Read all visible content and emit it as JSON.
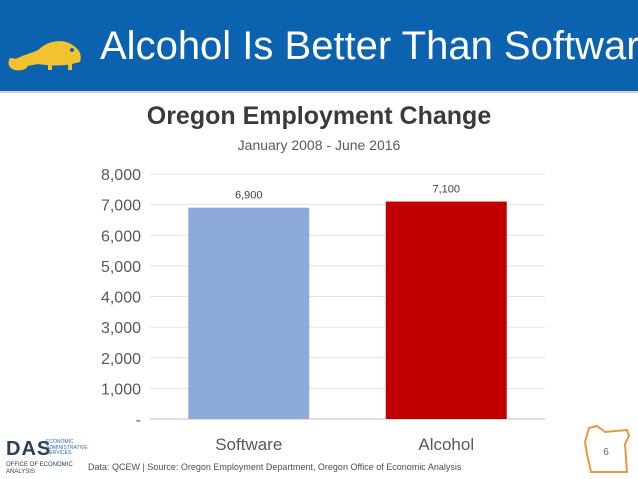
{
  "slide": {
    "title": "Alcohol Is Better Than Software",
    "page_number": "6",
    "source_note": "Data: QCEW  |  Source: Oregon Employment Department, Oregon Office of Economic Analysis",
    "logo": {
      "letters": "DAS",
      "subtitle_line1": "OFFICE OF ECONOMIC",
      "subtitle_line2": "ANALYSIS",
      "tagline": "ECONOMIC ADMINISTRATIVE SERVICES"
    },
    "colors": {
      "header": "#0b63b0",
      "beaver": "#f2c230",
      "oregon_outline": "#e69a3a"
    }
  },
  "chart_data": {
    "type": "bar",
    "title": "Oregon Employment Change",
    "subtitle": "January 2008 - June 2016",
    "categories": [
      "Software",
      "Alcohol"
    ],
    "values": [
      6900,
      7100
    ],
    "data_labels": [
      "6,900",
      "7,100"
    ],
    "bar_colors": [
      "#8eaadb",
      "#c00000"
    ],
    "ylim": [
      0,
      8000
    ],
    "yticks": [
      0,
      1000,
      2000,
      3000,
      4000,
      5000,
      6000,
      7000,
      8000
    ],
    "ytick_labels": [
      "-",
      "1,000",
      "2,000",
      "3,000",
      "4,000",
      "5,000",
      "6,000",
      "7,000",
      "8,000"
    ],
    "grid": true,
    "legend": "none"
  }
}
